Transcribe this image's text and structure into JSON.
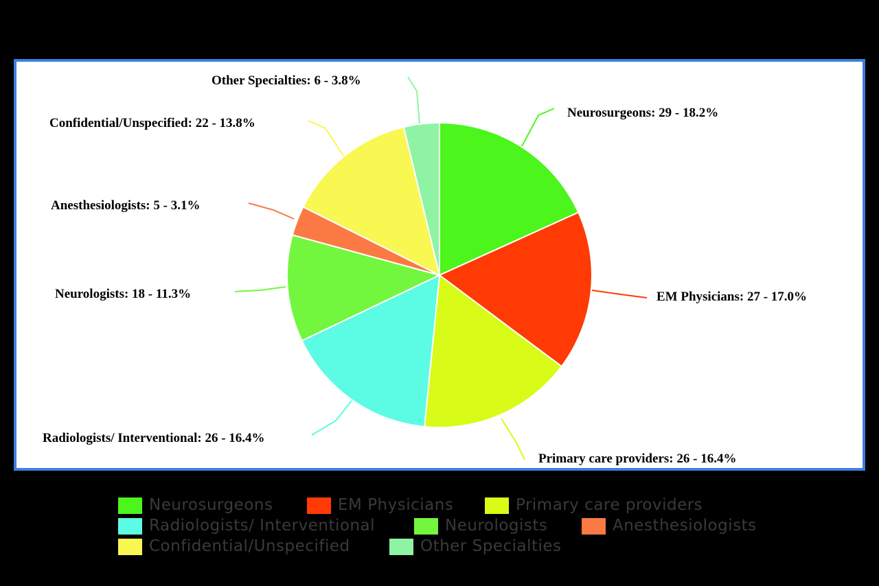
{
  "chart_data": {
    "type": "pie",
    "slices": [
      {
        "name": "Neurosurgeons",
        "value": 29,
        "percent": 18.2,
        "label": "Neurosurgeons: 29 - 18.2%",
        "color": "#4cf51b"
      },
      {
        "name": "EM Physicians",
        "value": 27,
        "percent": 17.0,
        "label": "EM Physicians: 27 - 17.0%",
        "color": "#ff3a05"
      },
      {
        "name": "Primary care providers",
        "value": 26,
        "percent": 16.4,
        "label": "Primary care providers: 26 - 16.4%",
        "color": "#d8fb18"
      },
      {
        "name": "Radiologists/ Interventional",
        "value": 26,
        "percent": 16.4,
        "label": "Radiologists/ Interventional: 26 - 16.4%",
        "color": "#5cfbe3"
      },
      {
        "name": "Neurologists",
        "value": 18,
        "percent": 11.3,
        "label": "Neurologists: 18 - 11.3%",
        "color": "#72f73e"
      },
      {
        "name": "Anesthesiologists",
        "value": 5,
        "percent": 3.1,
        "label": "Anesthesiologists: 5 - 3.1%",
        "color": "#fb7a43"
      },
      {
        "name": "Confidential/Unspecified",
        "value": 22,
        "percent": 13.8,
        "label": "Confidential/Unspecified: 22 - 13.8%",
        "color": "#f9f752"
      },
      {
        "name": "Other Specialties",
        "value": 6,
        "percent": 3.8,
        "label": "Other Specialties: 6 - 3.8%",
        "color": "#8ef4a4"
      }
    ],
    "legend": {
      "placement": "bottom",
      "entries": [
        "Neurosurgeons",
        "EM Physicians",
        "Primary care providers",
        "Radiologists/ Interventional",
        "Neurologists",
        "Anesthesiologists",
        "Confidential/Unspecified",
        "Other Specialties"
      ]
    },
    "colors": {
      "frame_border": "#3d7fe0",
      "plot_background": "#ffffff",
      "page_background": "#000000",
      "legend_text": "#3a3a3a"
    }
  }
}
